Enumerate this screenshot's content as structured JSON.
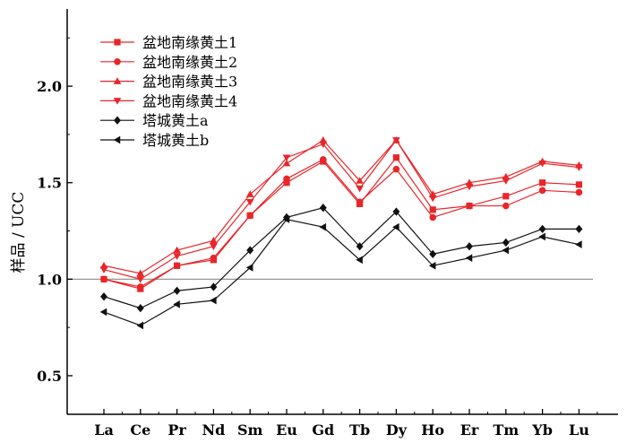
{
  "chart_data": {
    "type": "line",
    "title": "",
    "xlabel": "",
    "ylabel": "样品 / UCC",
    "ylim": [
      0.3,
      2.4
    ],
    "yticks": [
      "0.5",
      "1.0",
      "1.5",
      "2.0"
    ],
    "reference_line": 1.0,
    "categories": [
      "La",
      "Ce",
      "Pr",
      "Nd",
      "Sm",
      "Eu",
      "Gd",
      "Tb",
      "Dy",
      "Ho",
      "Er",
      "Tm",
      "Yb",
      "Lu"
    ],
    "legend_position": "top-left",
    "series": [
      {
        "name": "盆地南缘黄土1",
        "color": "#e8262a",
        "marker": "square",
        "values": [
          1.0,
          0.95,
          1.07,
          1.1,
          1.33,
          1.5,
          1.61,
          1.39,
          1.63,
          1.36,
          1.38,
          1.43,
          1.5,
          1.49
        ]
      },
      {
        "name": "盆地南缘黄土2",
        "color": "#e8262a",
        "marker": "circle",
        "values": [
          1.0,
          0.96,
          1.07,
          1.11,
          1.33,
          1.52,
          1.62,
          1.4,
          1.57,
          1.32,
          1.38,
          1.38,
          1.46,
          1.45
        ]
      },
      {
        "name": "盆地南缘黄土3",
        "color": "#e8262a",
        "marker": "triangle-up",
        "values": [
          1.07,
          1.03,
          1.15,
          1.2,
          1.44,
          1.6,
          1.72,
          1.51,
          1.72,
          1.44,
          1.5,
          1.53,
          1.61,
          1.59
        ]
      },
      {
        "name": "盆地南缘黄土4",
        "color": "#e8262a",
        "marker": "triangle-down",
        "values": [
          1.05,
          1.0,
          1.12,
          1.17,
          1.4,
          1.63,
          1.7,
          1.47,
          1.72,
          1.42,
          1.48,
          1.51,
          1.6,
          1.58
        ]
      },
      {
        "name": "塔城黄土a",
        "color": "#111111",
        "marker": "diamond",
        "values": [
          0.91,
          0.85,
          0.94,
          0.96,
          1.15,
          1.32,
          1.37,
          1.17,
          1.35,
          1.13,
          1.17,
          1.19,
          1.26,
          1.26
        ]
      },
      {
        "name": "塔城黄土b",
        "color": "#111111",
        "marker": "triangle-left",
        "values": [
          0.83,
          0.76,
          0.87,
          0.89,
          1.06,
          1.31,
          1.27,
          1.1,
          1.27,
          1.07,
          1.11,
          1.15,
          1.22,
          1.18
        ]
      }
    ]
  }
}
